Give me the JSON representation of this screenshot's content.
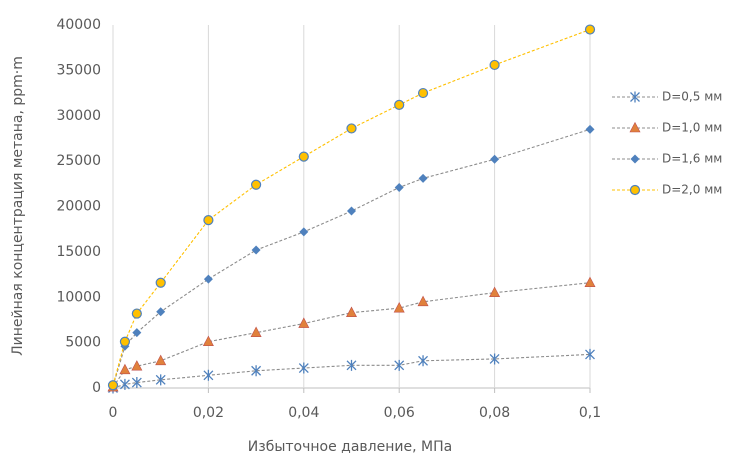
{
  "chart_data": {
    "type": "line",
    "x_label": "Избыточное давление, МПа",
    "y_label": "Линейная концентрация метана, ppm·m",
    "x": [
      0,
      0.0025,
      0.005,
      0.01,
      0.02,
      0.03,
      0.04,
      0.05,
      0.06,
      0.065,
      0.08,
      0.1
    ],
    "series": [
      {
        "name": "D=0,5 мм",
        "color": "#4f81bd",
        "line_color": "#8c8c8c",
        "marker": "star",
        "values": [
          0,
          400,
          600,
          900,
          1400,
          1900,
          2200,
          2500,
          2500,
          3000,
          3200,
          3700
        ]
      },
      {
        "name": "D=1,0 мм",
        "color": "#e0813c",
        "line_color": "#8c8c8c",
        "marker": "triangle",
        "values": [
          100,
          2000,
          2400,
          3000,
          5100,
          6100,
          7100,
          8300,
          8800,
          9500,
          10500,
          11600
        ]
      },
      {
        "name": "D=1,6 мм",
        "color": "#4f81bd",
        "line_color": "#8c8c8c",
        "marker": "diamond",
        "values": [
          200,
          4600,
          6100,
          8400,
          12000,
          15200,
          17200,
          19500,
          22100,
          23100,
          25200,
          28500
        ]
      },
      {
        "name": "D=2,0 мм",
        "color": "#ffc000",
        "line_color": "#ffc000",
        "marker": "circle",
        "values": [
          300,
          5100,
          8200,
          11600,
          18500,
          22400,
          25500,
          28600,
          31200,
          32500,
          35600,
          39500
        ]
      }
    ],
    "xlim": [
      0,
      0.1
    ],
    "xticks": [
      0,
      {
        "value": 0.02,
        "label": "0,02"
      },
      {
        "value": 0.04,
        "label": "0,04"
      },
      {
        "value": 0.06,
        "label": "0,06"
      },
      {
        "value": 0.08,
        "label": "0,08"
      },
      {
        "value": 0.1,
        "label": "0,1"
      }
    ],
    "ylim": [
      0,
      40000
    ],
    "yticks": [
      0,
      5000,
      10000,
      15000,
      20000,
      25000,
      30000,
      35000,
      40000
    ],
    "grid": "x",
    "legend": "right"
  }
}
